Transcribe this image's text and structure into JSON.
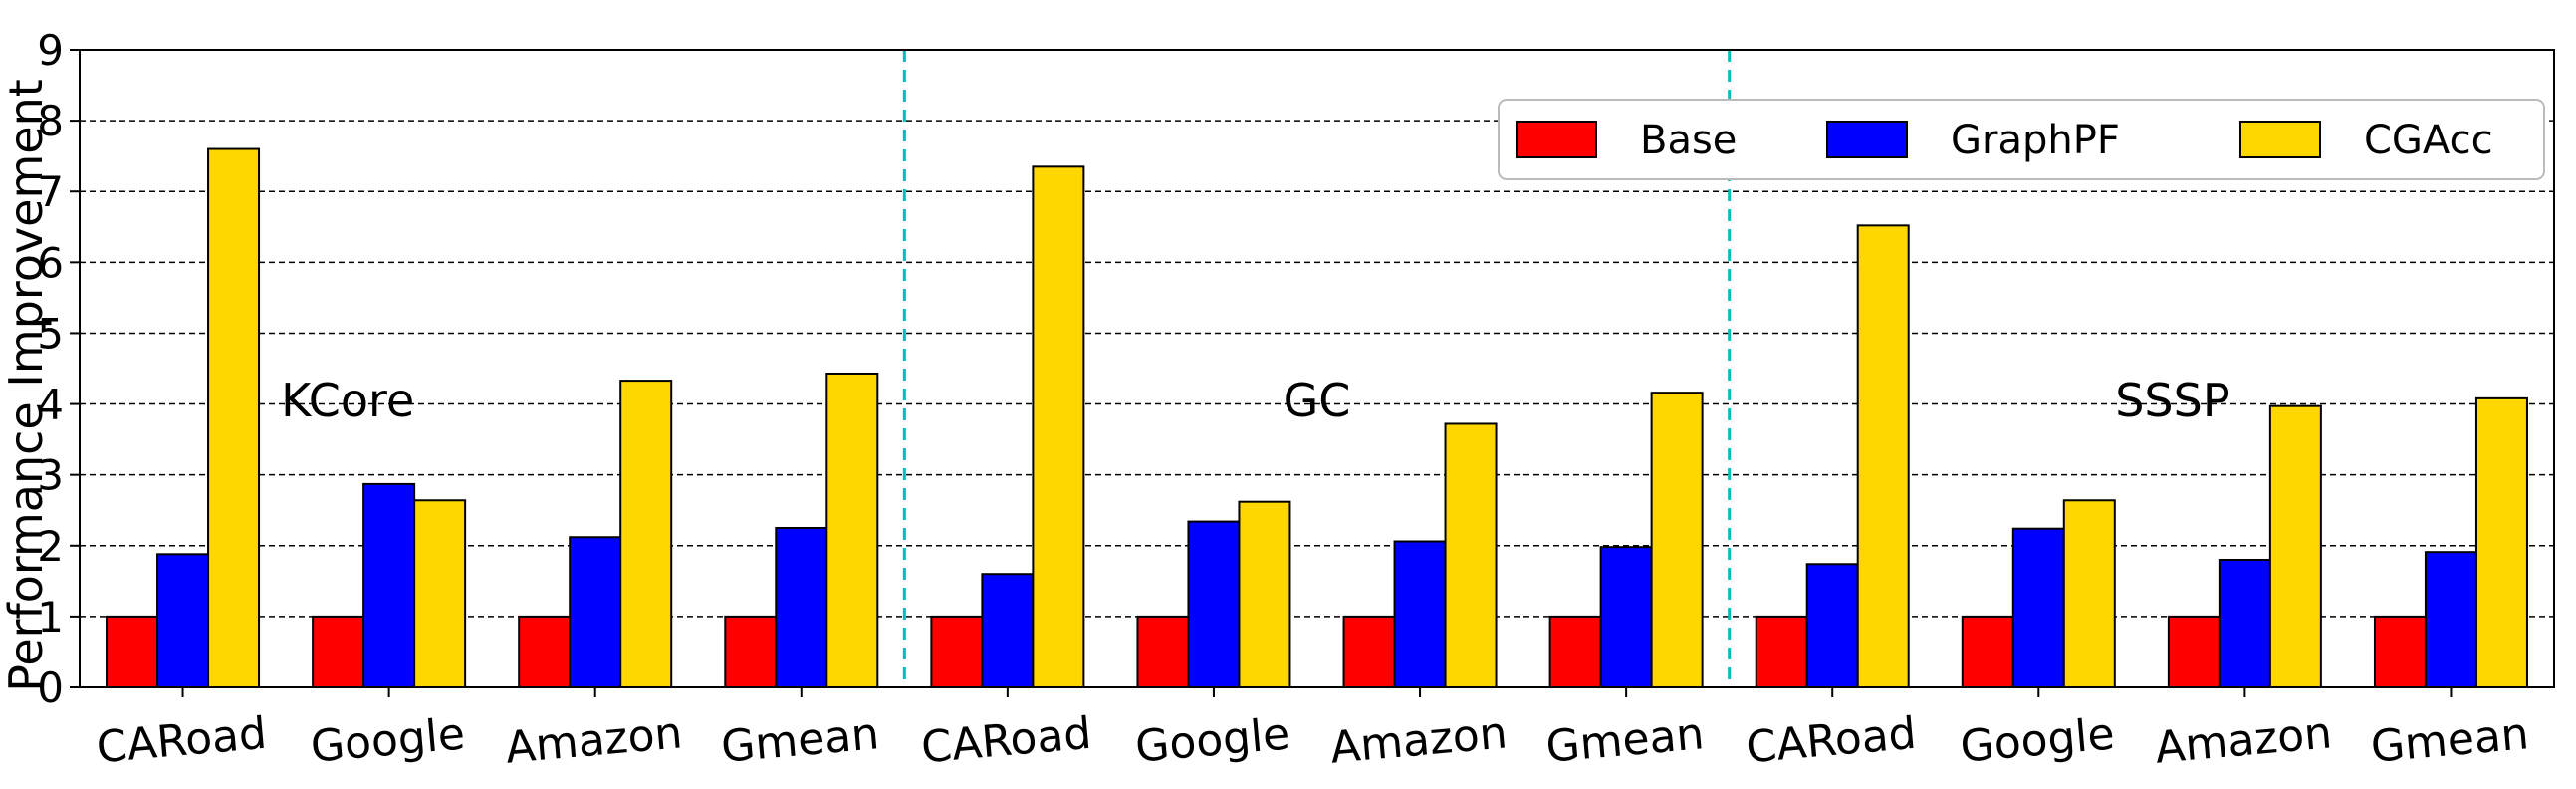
{
  "chart_data": {
    "type": "bar",
    "ylabel": "Performance Improvement",
    "xlabel": "",
    "ylim": [
      0,
      9
    ],
    "yticks": [
      0,
      1,
      2,
      3,
      4,
      5,
      6,
      7,
      8,
      9
    ],
    "grid": "horizontal dashed",
    "legend_placement": "top-right",
    "categories": [
      "CARoad",
      "Google",
      "Amazon",
      "Gmean",
      "CARoad",
      "Google",
      "Amazon",
      "Gmean",
      "CARoad",
      "Google",
      "Amazon",
      "Gmean"
    ],
    "groups": [
      {
        "label": "KCore",
        "category_count": 4
      },
      {
        "label": "GC",
        "category_count": 4
      },
      {
        "label": "SSSP",
        "category_count": 4
      }
    ],
    "series": [
      {
        "name": "Base",
        "color": "#ff0000",
        "values": [
          1,
          1,
          1,
          1,
          1,
          1,
          1,
          1,
          1,
          1,
          1,
          1
        ]
      },
      {
        "name": "GraphPF",
        "color": "#0000ff",
        "values": [
          1.88,
          2.87,
          2.12,
          2.25,
          1.6,
          2.34,
          2.06,
          1.98,
          1.74,
          2.24,
          1.8,
          1.91
        ]
      },
      {
        "name": "CGAcc",
        "color": "#ffd700",
        "values": [
          7.6,
          2.64,
          4.33,
          4.43,
          7.35,
          2.62,
          3.72,
          4.16,
          6.52,
          2.64,
          3.97,
          4.08
        ]
      }
    ]
  }
}
